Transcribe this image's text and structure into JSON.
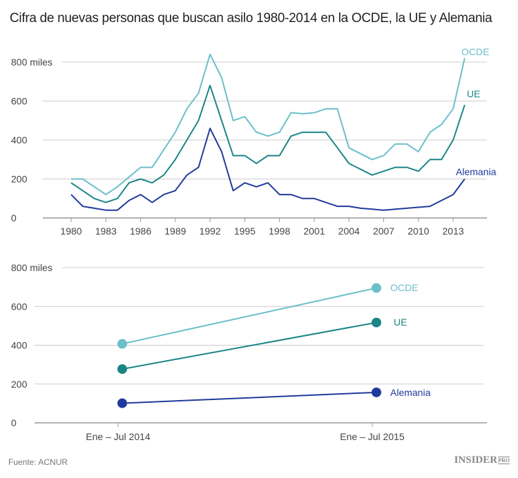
{
  "title": "Cifra de nuevas personas que buscan asilo 1980-2014 en la OCDE, la UE y Alemania",
  "source": "Fuente: ACNUR",
  "logo": {
    "text": "INSIDER",
    "suffix": "PRO"
  },
  "colors": {
    "OCDE": "#6bbfc9",
    "UE": "#1a8585",
    "Alemania": "#1f3a9a",
    "grid": "#cccccc"
  },
  "chart_data": [
    {
      "type": "line",
      "xlabel": "",
      "ylabel": "",
      "ylim": [
        0,
        800
      ],
      "yticks": [
        0,
        200,
        400,
        600,
        800
      ],
      "ytick_labels": [
        "0",
        "200",
        "400",
        "600",
        "800 miles"
      ],
      "xticks": [
        1980,
        1983,
        1986,
        1989,
        1992,
        1995,
        1998,
        2001,
        2004,
        2007,
        2010,
        2013
      ],
      "xlim": [
        1980,
        2014
      ],
      "grid": true,
      "legend": "inline-right",
      "x": [
        1980,
        1981,
        1982,
        1983,
        1984,
        1985,
        1986,
        1987,
        1988,
        1989,
        1990,
        1991,
        1992,
        1993,
        1994,
        1995,
        1996,
        1997,
        1998,
        1999,
        2000,
        2001,
        2002,
        2003,
        2004,
        2005,
        2006,
        2007,
        2008,
        2009,
        2010,
        2011,
        2012,
        2013,
        2014
      ],
      "series": [
        {
          "name": "OCDE",
          "values": [
            200,
            200,
            160,
            120,
            160,
            210,
            260,
            260,
            350,
            440,
            560,
            640,
            840,
            720,
            500,
            520,
            440,
            420,
            440,
            540,
            535,
            540,
            560,
            560,
            360,
            330,
            300,
            320,
            380,
            380,
            340,
            440,
            480,
            560,
            820
          ]
        },
        {
          "name": "UE",
          "values": [
            180,
            140,
            100,
            80,
            100,
            180,
            200,
            180,
            220,
            300,
            400,
            500,
            680,
            500,
            320,
            320,
            280,
            320,
            320,
            420,
            440,
            440,
            440,
            360,
            280,
            250,
            220,
            240,
            260,
            260,
            240,
            300,
            300,
            400,
            580
          ]
        },
        {
          "name": "Alemania",
          "values": [
            120,
            60,
            50,
            40,
            40,
            90,
            120,
            80,
            120,
            140,
            220,
            260,
            460,
            340,
            140,
            180,
            160,
            180,
            120,
            120,
            100,
            100,
            80,
            60,
            60,
            50,
            45,
            40,
            45,
            50,
            55,
            60,
            90,
            120,
            200
          ]
        }
      ]
    },
    {
      "type": "line",
      "xlabel": "",
      "ylabel": "",
      "ylim": [
        0,
        800
      ],
      "yticks": [
        0,
        200,
        400,
        600,
        800
      ],
      "ytick_labels": [
        "0",
        "200",
        "400",
        "600",
        "800 miles"
      ],
      "categories": [
        "Ene – Jul 2014",
        "Ene – Jul 2015"
      ],
      "grid": true,
      "legend": "inline-right",
      "series": [
        {
          "name": "OCDE",
          "values": [
            407,
            695
          ]
        },
        {
          "name": "UE",
          "values": [
            277,
            517
          ]
        },
        {
          "name": "Alemania",
          "values": [
            101,
            157
          ]
        }
      ]
    }
  ]
}
